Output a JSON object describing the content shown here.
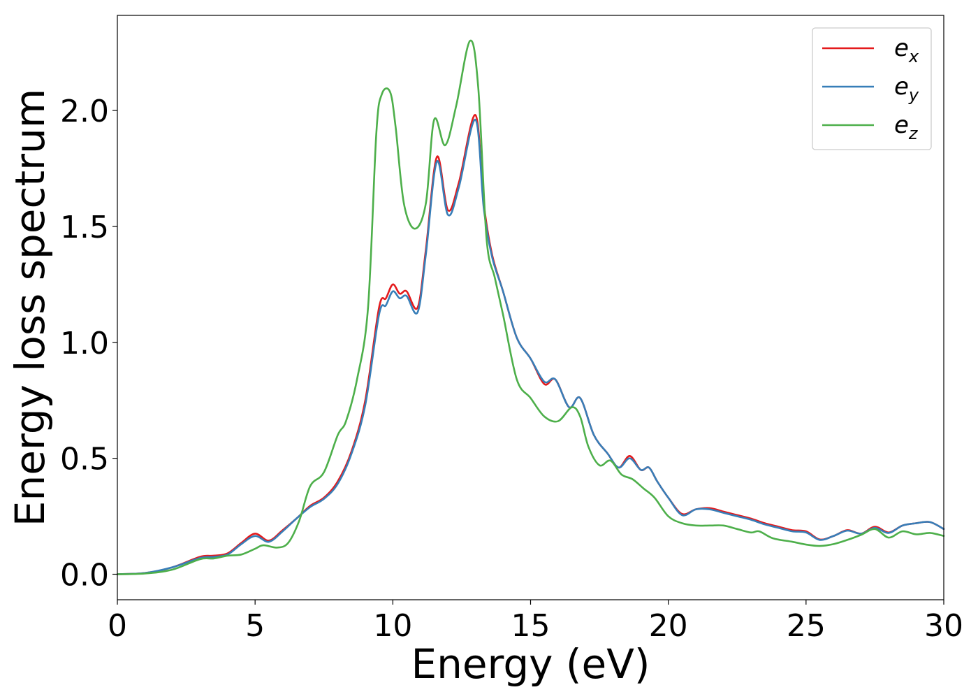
{
  "chart_data": {
    "type": "line",
    "title": "",
    "xlabel": "Energy (eV)",
    "ylabel": "Energy loss spectrum",
    "xlim": [
      0,
      30
    ],
    "ylim": [
      -0.11,
      2.41
    ],
    "xticks": [
      0,
      5,
      10,
      15,
      20,
      25,
      30
    ],
    "xtick_labels": [
      "0",
      "5",
      "10",
      "15",
      "20",
      "25",
      "30"
    ],
    "yticks": [
      0.0,
      0.5,
      1.0,
      1.5,
      2.0
    ],
    "ytick_labels": [
      "0.0",
      "0.5",
      "1.0",
      "1.5",
      "2.0"
    ],
    "grid": false,
    "legend_position": "top-right",
    "series": [
      {
        "name": "e_x",
        "label_base": "e",
        "label_sub": "x",
        "color": "#e41a1c",
        "points": [
          [
            0,
            0
          ],
          [
            1,
            0.005
          ],
          [
            2,
            0.03
          ],
          [
            3,
            0.075
          ],
          [
            3.5,
            0.08
          ],
          [
            4,
            0.09
          ],
          [
            4.5,
            0.135
          ],
          [
            5,
            0.175
          ],
          [
            5.5,
            0.145
          ],
          [
            6,
            0.19
          ],
          [
            6.5,
            0.24
          ],
          [
            7,
            0.295
          ],
          [
            7.5,
            0.33
          ],
          [
            8,
            0.4
          ],
          [
            8.5,
            0.53
          ],
          [
            9,
            0.75
          ],
          [
            9.5,
            1.15
          ],
          [
            9.75,
            1.19
          ],
          [
            10,
            1.25
          ],
          [
            10.25,
            1.21
          ],
          [
            10.5,
            1.22
          ],
          [
            10.9,
            1.15
          ],
          [
            11.2,
            1.4
          ],
          [
            11.6,
            1.8
          ],
          [
            12,
            1.57
          ],
          [
            12.4,
            1.69
          ],
          [
            13,
            1.98
          ],
          [
            13.3,
            1.6
          ],
          [
            13.6,
            1.38
          ],
          [
            14,
            1.22
          ],
          [
            14.5,
            1.02
          ],
          [
            15,
            0.93
          ],
          [
            15.5,
            0.82
          ],
          [
            15.9,
            0.84
          ],
          [
            16.4,
            0.72
          ],
          [
            16.8,
            0.76
          ],
          [
            17.3,
            0.6
          ],
          [
            17.8,
            0.52
          ],
          [
            18.2,
            0.46
          ],
          [
            18.6,
            0.51
          ],
          [
            19,
            0.45
          ],
          [
            19.3,
            0.46
          ],
          [
            19.6,
            0.4
          ],
          [
            20,
            0.33
          ],
          [
            20.5,
            0.26
          ],
          [
            21,
            0.28
          ],
          [
            21.5,
            0.285
          ],
          [
            22,
            0.27
          ],
          [
            22.5,
            0.255
          ],
          [
            23,
            0.24
          ],
          [
            23.5,
            0.22
          ],
          [
            24,
            0.205
          ],
          [
            24.5,
            0.19
          ],
          [
            25,
            0.185
          ],
          [
            25.5,
            0.15
          ],
          [
            26,
            0.165
          ],
          [
            26.5,
            0.19
          ],
          [
            27,
            0.175
          ],
          [
            27.5,
            0.205
          ],
          [
            28,
            0.18
          ],
          [
            28.5,
            0.21
          ],
          [
            29,
            0.22
          ],
          [
            29.5,
            0.225
          ],
          [
            30,
            0.195
          ]
        ]
      },
      {
        "name": "e_y",
        "label_base": "e",
        "label_sub": "y",
        "color": "#377eb8",
        "points": [
          [
            0,
            0
          ],
          [
            1,
            0.005
          ],
          [
            2,
            0.03
          ],
          [
            3,
            0.07
          ],
          [
            3.5,
            0.075
          ],
          [
            4,
            0.085
          ],
          [
            4.5,
            0.13
          ],
          [
            5,
            0.165
          ],
          [
            5.5,
            0.14
          ],
          [
            6,
            0.185
          ],
          [
            6.5,
            0.24
          ],
          [
            7,
            0.29
          ],
          [
            7.5,
            0.325
          ],
          [
            8,
            0.39
          ],
          [
            8.5,
            0.52
          ],
          [
            9,
            0.73
          ],
          [
            9.5,
            1.12
          ],
          [
            9.75,
            1.16
          ],
          [
            10,
            1.22
          ],
          [
            10.25,
            1.19
          ],
          [
            10.5,
            1.2
          ],
          [
            10.9,
            1.13
          ],
          [
            11.2,
            1.38
          ],
          [
            11.6,
            1.78
          ],
          [
            12,
            1.55
          ],
          [
            12.4,
            1.67
          ],
          [
            13,
            1.96
          ],
          [
            13.3,
            1.58
          ],
          [
            13.6,
            1.37
          ],
          [
            14,
            1.22
          ],
          [
            14.5,
            1.02
          ],
          [
            15,
            0.93
          ],
          [
            15.5,
            0.83
          ],
          [
            15.9,
            0.84
          ],
          [
            16.4,
            0.72
          ],
          [
            16.8,
            0.76
          ],
          [
            17.3,
            0.6
          ],
          [
            17.8,
            0.52
          ],
          [
            18.2,
            0.46
          ],
          [
            18.6,
            0.5
          ],
          [
            19,
            0.45
          ],
          [
            19.3,
            0.46
          ],
          [
            19.6,
            0.4
          ],
          [
            20,
            0.33
          ],
          [
            20.5,
            0.255
          ],
          [
            21,
            0.28
          ],
          [
            21.5,
            0.28
          ],
          [
            22,
            0.265
          ],
          [
            22.5,
            0.25
          ],
          [
            23,
            0.235
          ],
          [
            23.5,
            0.215
          ],
          [
            24,
            0.2
          ],
          [
            24.5,
            0.185
          ],
          [
            25,
            0.18
          ],
          [
            25.5,
            0.148
          ],
          [
            26,
            0.165
          ],
          [
            26.5,
            0.188
          ],
          [
            27,
            0.175
          ],
          [
            27.5,
            0.2
          ],
          [
            28,
            0.178
          ],
          [
            28.5,
            0.21
          ],
          [
            29,
            0.22
          ],
          [
            29.5,
            0.225
          ],
          [
            30,
            0.195
          ]
        ]
      },
      {
        "name": "e_z",
        "label_base": "e",
        "label_sub": "z",
        "color": "#4daf4a",
        "points": [
          [
            0,
            0
          ],
          [
            1,
            0.003
          ],
          [
            2,
            0.02
          ],
          [
            3,
            0.065
          ],
          [
            3.5,
            0.068
          ],
          [
            4,
            0.08
          ],
          [
            4.5,
            0.085
          ],
          [
            5,
            0.11
          ],
          [
            5.3,
            0.125
          ],
          [
            5.8,
            0.115
          ],
          [
            6.2,
            0.135
          ],
          [
            6.6,
            0.23
          ],
          [
            7,
            0.38
          ],
          [
            7.5,
            0.44
          ],
          [
            8,
            0.6
          ],
          [
            8.3,
            0.66
          ],
          [
            8.7,
            0.84
          ],
          [
            9.1,
            1.15
          ],
          [
            9.4,
            1.9
          ],
          [
            9.6,
            2.07
          ],
          [
            9.9,
            2.08
          ],
          [
            10.1,
            1.93
          ],
          [
            10.4,
            1.6
          ],
          [
            10.8,
            1.49
          ],
          [
            11.2,
            1.6
          ],
          [
            11.5,
            1.96
          ],
          [
            11.9,
            1.85
          ],
          [
            12.3,
            2.02
          ],
          [
            12.8,
            2.3
          ],
          [
            13.1,
            2.1
          ],
          [
            13.4,
            1.45
          ],
          [
            13.7,
            1.28
          ],
          [
            14,
            1.12
          ],
          [
            14.5,
            0.84
          ],
          [
            15,
            0.76
          ],
          [
            15.5,
            0.68
          ],
          [
            16,
            0.66
          ],
          [
            16.5,
            0.72
          ],
          [
            16.8,
            0.68
          ],
          [
            17.1,
            0.55
          ],
          [
            17.5,
            0.47
          ],
          [
            17.9,
            0.49
          ],
          [
            18.3,
            0.43
          ],
          [
            18.7,
            0.41
          ],
          [
            19.1,
            0.37
          ],
          [
            19.5,
            0.33
          ],
          [
            20,
            0.25
          ],
          [
            20.5,
            0.22
          ],
          [
            21,
            0.21
          ],
          [
            21.5,
            0.21
          ],
          [
            22,
            0.21
          ],
          [
            22.5,
            0.195
          ],
          [
            23,
            0.18
          ],
          [
            23.3,
            0.185
          ],
          [
            23.8,
            0.155
          ],
          [
            24.5,
            0.14
          ],
          [
            25,
            0.128
          ],
          [
            25.5,
            0.122
          ],
          [
            26,
            0.13
          ],
          [
            26.5,
            0.148
          ],
          [
            27,
            0.17
          ],
          [
            27.5,
            0.195
          ],
          [
            28,
            0.158
          ],
          [
            28.5,
            0.185
          ],
          [
            29,
            0.172
          ],
          [
            29.5,
            0.178
          ],
          [
            30,
            0.165
          ]
        ]
      }
    ]
  }
}
